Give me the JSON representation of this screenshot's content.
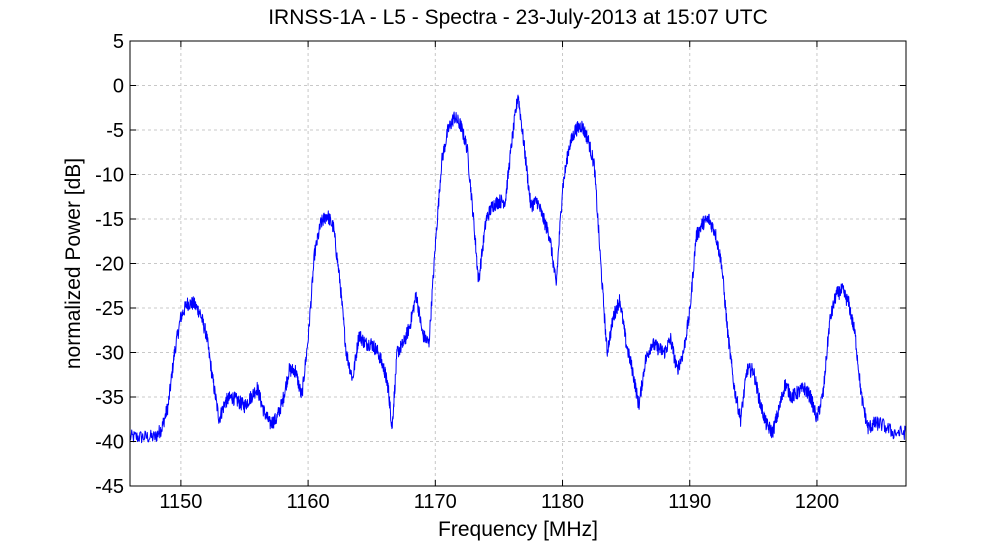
{
  "chart_data": {
    "type": "line",
    "title": "IRNSS-1A - L5 - Spectra - 23-July-2013 at 15:07 UTC",
    "xlabel": "Frequency [MHz]",
    "ylabel": "normalized Power [dB]",
    "xlim": [
      1146,
      1207
    ],
    "ylim": [
      -45,
      5
    ],
    "xticks": [
      1150,
      1160,
      1170,
      1180,
      1190,
      1200
    ],
    "yticks": [
      5,
      0,
      -5,
      -10,
      -15,
      -20,
      -25,
      -30,
      -35,
      -40,
      -45
    ],
    "xtick_labels": [
      "1150",
      "1160",
      "1170",
      "1180",
      "1190",
      "1200"
    ],
    "ytick_labels": [
      "5",
      "0",
      "-5",
      "-10",
      "-15",
      "-20",
      "-25",
      "-30",
      "-35",
      "-40",
      "-45"
    ],
    "grid": true,
    "color": "#0000ff",
    "series": [
      {
        "x": [
          1146,
          1147,
          1148,
          1148.5,
          1149,
          1149.5,
          1150,
          1150.5,
          1151,
          1151.5,
          1152,
          1152.5,
          1153,
          1153.5,
          1154,
          1154.5,
          1155,
          1155.5,
          1156,
          1156.5,
          1157,
          1157.5,
          1158,
          1158.5,
          1159,
          1159.5,
          1160,
          1160.5,
          1161,
          1161.5,
          1162,
          1162.5,
          1163,
          1163.5,
          1164,
          1164.5,
          1165,
          1165.5,
          1166,
          1166.3,
          1166.6,
          1167,
          1167.5,
          1168,
          1168.5,
          1169,
          1169.5,
          1170,
          1170.5,
          1171,
          1171.5,
          1172,
          1172.5,
          1173,
          1173.4,
          1174,
          1174.5,
          1175,
          1175.5,
          1176,
          1176.5,
          1177,
          1177.5,
          1178,
          1178.5,
          1179,
          1179.5,
          1180,
          1180.5,
          1181,
          1181.5,
          1182,
          1182.5,
          1183,
          1183.5,
          1184,
          1184.5,
          1185,
          1185.5,
          1186,
          1186.5,
          1187,
          1187.5,
          1188,
          1188.5,
          1189,
          1189.5,
          1190,
          1190.5,
          1191,
          1191.5,
          1192,
          1192.5,
          1193,
          1193.5,
          1194,
          1194.5,
          1195,
          1195.5,
          1196,
          1196.5,
          1197,
          1197.5,
          1198,
          1198.5,
          1199,
          1199.5,
          1200,
          1200.5,
          1201,
          1201.5,
          1202,
          1202.5,
          1203,
          1203.5,
          1204,
          1204.5,
          1205,
          1206,
          1207
        ],
        "y": [
          -39.5,
          -39.5,
          -39.5,
          -38.5,
          -36,
          -30,
          -26,
          -24.5,
          -24.5,
          -25.5,
          -28,
          -33,
          -37.5,
          -35.5,
          -35,
          -35.5,
          -36,
          -35,
          -34,
          -36.5,
          -38,
          -37.5,
          -35.5,
          -32,
          -32,
          -35,
          -28.5,
          -19,
          -15.5,
          -14.5,
          -16,
          -22,
          -30,
          -33,
          -28,
          -29,
          -29,
          -30,
          -32,
          -34,
          -38.5,
          -30,
          -29,
          -27,
          -23.5,
          -28,
          -29,
          -18,
          -8.5,
          -5,
          -3.5,
          -4.5,
          -7,
          -15,
          -22,
          -15,
          -13.5,
          -13,
          -13,
          -6.5,
          -1,
          -7,
          -13.5,
          -13,
          -15,
          -17,
          -22.5,
          -11.5,
          -7,
          -5,
          -4.5,
          -6,
          -9,
          -20,
          -30,
          -26,
          -24,
          -29,
          -32,
          -36,
          -31,
          -29,
          -29.5,
          -30,
          -28.5,
          -32,
          -30,
          -25.5,
          -17,
          -15.5,
          -15,
          -16.5,
          -20,
          -28,
          -34,
          -37.5,
          -32,
          -32,
          -35.5,
          -38,
          -39,
          -36.5,
          -33.5,
          -35,
          -34.5,
          -34,
          -35,
          -37.5,
          -34.5,
          -26.5,
          -23.5,
          -23,
          -24.5,
          -28,
          -35,
          -38.5,
          -38,
          -38,
          -39,
          -39
        ]
      }
    ]
  }
}
